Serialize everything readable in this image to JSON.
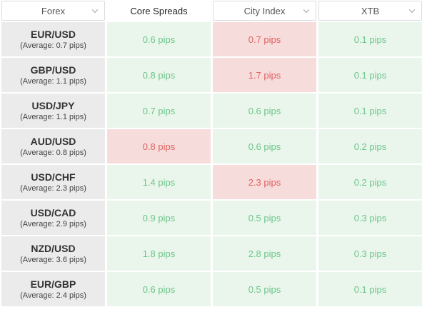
{
  "header": {
    "forex_select": "Forex",
    "broker1": "Core Spreads",
    "broker2_select": "City Index",
    "broker3_select": "XTB"
  },
  "colors": {
    "good_bg": "#eaf6ec",
    "good_text": "#6dc58a",
    "bad_bg": "#f7dcdc",
    "bad_text": "#e06262"
  },
  "rows": [
    {
      "pair": "EUR/USD",
      "average": "(Average: 0.7 pips)",
      "cells": [
        {
          "value": "0.6 pips",
          "status": "good"
        },
        {
          "value": "0.7 pips",
          "status": "bad"
        },
        {
          "value": "0.1 pips",
          "status": "good"
        }
      ]
    },
    {
      "pair": "GBP/USD",
      "average": "(Average: 1.1 pips)",
      "cells": [
        {
          "value": "0.8 pips",
          "status": "good"
        },
        {
          "value": "1.7 pips",
          "status": "bad"
        },
        {
          "value": "0.1 pips",
          "status": "good"
        }
      ]
    },
    {
      "pair": "USD/JPY",
      "average": "(Average: 1.1 pips)",
      "cells": [
        {
          "value": "0.7 pips",
          "status": "good"
        },
        {
          "value": "0.6 pips",
          "status": "good"
        },
        {
          "value": "0.1 pips",
          "status": "good"
        }
      ]
    },
    {
      "pair": "AUD/USD",
      "average": "(Average: 0.8 pips)",
      "cells": [
        {
          "value": "0.8 pips",
          "status": "bad"
        },
        {
          "value": "0.6 pips",
          "status": "good"
        },
        {
          "value": "0.2 pips",
          "status": "good"
        }
      ]
    },
    {
      "pair": "USD/CHF",
      "average": "(Average: 2.3 pips)",
      "cells": [
        {
          "value": "1.4 pips",
          "status": "good"
        },
        {
          "value": "2.3 pips",
          "status": "bad"
        },
        {
          "value": "0.2 pips",
          "status": "good"
        }
      ]
    },
    {
      "pair": "USD/CAD",
      "average": "(Average: 2.9 pips)",
      "cells": [
        {
          "value": "0.9 pips",
          "status": "good"
        },
        {
          "value": "0.5 pips",
          "status": "good"
        },
        {
          "value": "0.3 pips",
          "status": "good"
        }
      ]
    },
    {
      "pair": "NZD/USD",
      "average": "(Average: 3.6 pips)",
      "cells": [
        {
          "value": "1.8 pips",
          "status": "good"
        },
        {
          "value": "2.8 pips",
          "status": "good"
        },
        {
          "value": "0.3 pips",
          "status": "good"
        }
      ]
    },
    {
      "pair": "EUR/GBP",
      "average": "(Average: 2.4 pips)",
      "cells": [
        {
          "value": "0.6 pips",
          "status": "good"
        },
        {
          "value": "0.5 pips",
          "status": "good"
        },
        {
          "value": "0.1 pips",
          "status": "good"
        }
      ]
    }
  ]
}
